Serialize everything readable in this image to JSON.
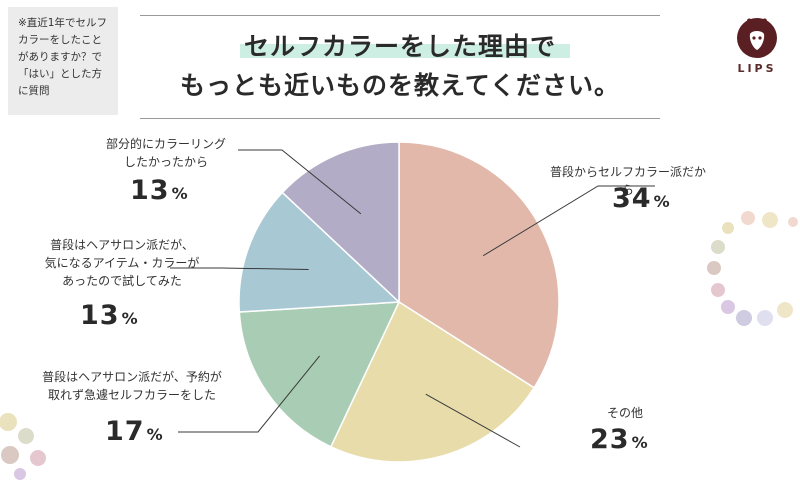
{
  "note": "※直近1年でセルフカラーをしたことがありますか？で「はい」とした方に質問",
  "title": {
    "line1": "セルフカラーをした理由で",
    "line2": "もっとも近いものを教えてください。"
  },
  "logo": {
    "text": "LIPS",
    "icon": "deer-head-icon"
  },
  "colors": {
    "slices": [
      "#e2b8ab",
      "#e8dcab",
      "#a8cdb4",
      "#a8c8d4",
      "#b2acc6"
    ],
    "accent": "#cdeee3",
    "dots": [
      "#efe6c8",
      "#f1d9cf",
      "#e9e2bd",
      "#dcdccb",
      "#d9c9c2",
      "#e5c7d0",
      "#d9c7e3",
      "#cfcbe0",
      "#e0dff0"
    ]
  },
  "chart_data": {
    "type": "pie",
    "start_angle": 0,
    "direction": "clockwise",
    "slices": [
      {
        "label": "普段からセルフカラー派だから",
        "value": 34
      },
      {
        "label": "その他",
        "value": 23
      },
      {
        "label": "普段はヘアサロン派だが、予約が取れず急遽セルフカラーをした",
        "value": 17
      },
      {
        "label": "普段はヘアサロン派だが、気になるアイテム・カラーがあったので試してみた",
        "value": 13
      },
      {
        "label": "部分的にカラーリングしたかったから",
        "value": 13
      }
    ],
    "labels_display": [
      "普段からセルフカラー派だから",
      "その他",
      "普段はヘアサロン派だが、予約が\n取れず急遽セルフカラーをした",
      "普段はヘアサロン派だが、\n気になるアイテム・カラーが\nあったので試してみた",
      "部分的にカラーリング\nしたかったから"
    ],
    "pct_display": [
      "34",
      "23",
      "17",
      "13",
      "13"
    ],
    "unit": "%"
  }
}
